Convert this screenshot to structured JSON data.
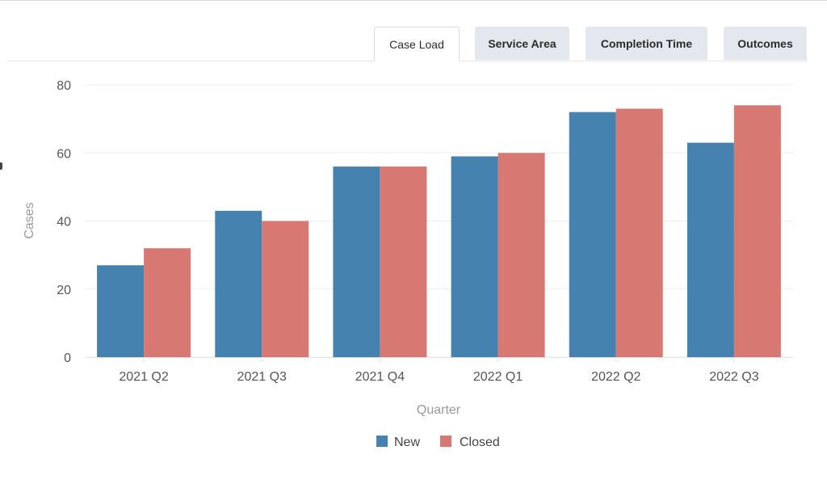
{
  "tabs": [
    {
      "label": "Case Load",
      "active": true
    },
    {
      "label": "Service Area",
      "active": false
    },
    {
      "label": "Completion Time",
      "active": false
    },
    {
      "label": "Outcomes",
      "active": false
    }
  ],
  "colors": {
    "new": "#4682b0",
    "closed": "#d77873",
    "grid": "#eeeeee",
    "axis_text": "#555555",
    "axis_title": "#999999"
  },
  "chart_data": {
    "type": "bar",
    "categories": [
      "2021 Q2",
      "2021 Q3",
      "2021 Q4",
      "2022 Q1",
      "2022 Q2",
      "2022 Q3"
    ],
    "series": [
      {
        "name": "New",
        "values": [
          27,
          43,
          56,
          59,
          72,
          63
        ]
      },
      {
        "name": "Closed",
        "values": [
          32,
          40,
          56,
          60,
          73,
          74
        ]
      }
    ],
    "xlabel": "Quarter",
    "ylabel": "Cases",
    "ylim": [
      0,
      80
    ],
    "yticks": [
      0,
      20,
      40,
      60,
      80
    ],
    "grid": true,
    "legend_position": "bottom"
  }
}
